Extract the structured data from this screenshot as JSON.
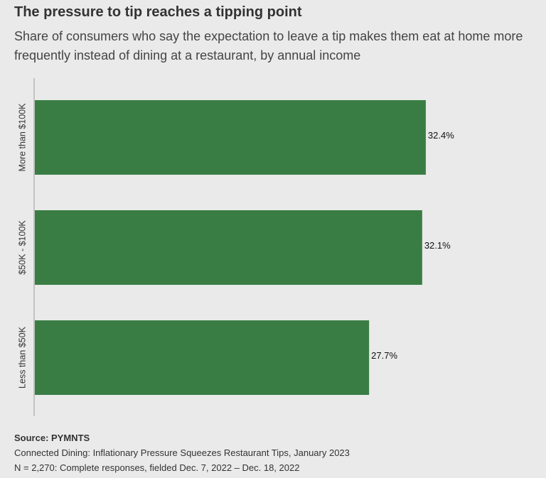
{
  "title": "The pressure to tip reaches a tipping point",
  "subtitle": "Share of consumers who say the expectation to leave a tip makes them eat at home more frequently instead of dining at a restaurant, by annual income",
  "chart_data": {
    "type": "bar",
    "orientation": "horizontal",
    "categories": [
      "More than $100K",
      "$50K - $100K",
      "Less than $50K"
    ],
    "values": [
      32.4,
      32.1,
      27.7
    ],
    "value_labels": [
      "32.4%",
      "32.1%",
      "27.7%"
    ],
    "unit": "%",
    "xlim": [
      0,
      37
    ],
    "grid": false,
    "legend": "none",
    "bar_color": "#3a7d44"
  },
  "footer": {
    "source": "Source: PYMNTS",
    "line1": "Connected Dining: Inflationary Pressure Squeezes Restaurant Tips, January 2023",
    "line2": "N = 2,270: Complete responses, fielded Dec. 7, 2022 – Dec. 18, 2022"
  }
}
